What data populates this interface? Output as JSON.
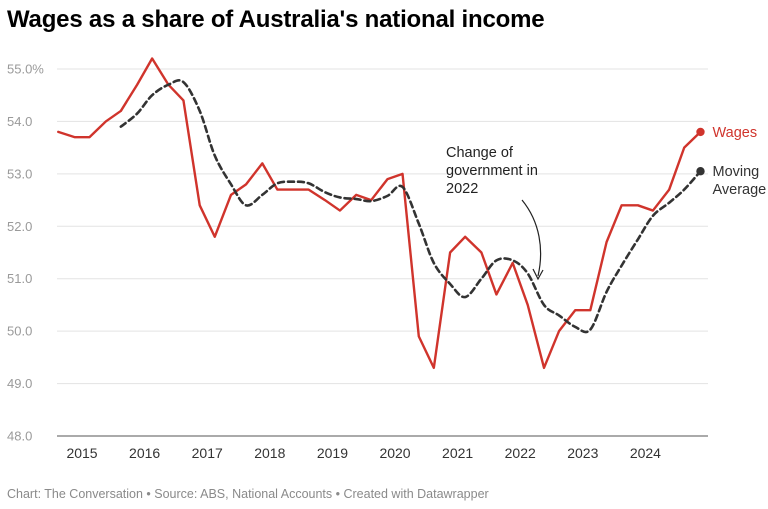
{
  "chart_data": {
    "type": "line",
    "title": "Wages as a share of Australia's national income",
    "footer": "Chart: The Conversation • Source: ABS, National Accounts • Created with Datawrapper",
    "ylim": [
      48.0,
      55.0
    ],
    "xlim": [
      2014.6,
      2025.0
    ],
    "y_ticks": [
      48.0,
      49.0,
      50.0,
      51.0,
      52.0,
      53.0,
      54.0,
      55.0
    ],
    "y_tick_labels": [
      "48.0",
      "49.0",
      "50.0",
      "51.0",
      "52.0",
      "53.0",
      "54.0",
      "55.0%"
    ],
    "x_ticks": [
      2015,
      2016,
      2017,
      2018,
      2019,
      2020,
      2021,
      2022,
      2023,
      2024
    ],
    "x_tick_labels": [
      "2015",
      "2016",
      "2017",
      "2018",
      "2019",
      "2020",
      "2021",
      "2022",
      "2023",
      "2024"
    ],
    "grid": true,
    "legend": "right",
    "annotation": {
      "lines": [
        "Change of",
        "government in",
        "2022"
      ]
    },
    "series": [
      {
        "name": "Wages",
        "color": "#d0342c",
        "style": "solid",
        "x": [
          2014.62,
          2014.88,
          2015.12,
          2015.38,
          2015.62,
          2015.88,
          2016.12,
          2016.38,
          2016.62,
          2016.88,
          2017.12,
          2017.38,
          2017.62,
          2017.88,
          2018.12,
          2018.38,
          2018.62,
          2018.88,
          2019.12,
          2019.38,
          2019.62,
          2019.88,
          2020.12,
          2020.38,
          2020.62,
          2020.88,
          2021.12,
          2021.38,
          2021.62,
          2021.88,
          2022.12,
          2022.38,
          2022.62,
          2022.88,
          2023.12,
          2023.38,
          2023.62,
          2023.88,
          2024.12,
          2024.38,
          2024.62,
          2024.88
        ],
        "values": [
          53.8,
          53.7,
          53.7,
          54.0,
          54.2,
          54.7,
          55.2,
          54.7,
          54.4,
          52.4,
          51.8,
          52.6,
          52.8,
          53.2,
          52.7,
          52.7,
          52.7,
          52.5,
          52.3,
          52.6,
          52.5,
          52.9,
          53.0,
          49.9,
          49.3,
          51.5,
          51.8,
          51.5,
          50.7,
          51.3,
          50.5,
          49.3,
          50.0,
          50.4,
          50.4,
          51.7,
          52.4,
          52.4,
          52.3,
          52.7,
          53.5,
          53.8
        ]
      },
      {
        "name": "Moving Average",
        "color": "#333333",
        "style": "dashed",
        "x": [
          2015.62,
          2015.88,
          2016.12,
          2016.38,
          2016.62,
          2016.88,
          2017.12,
          2017.38,
          2017.62,
          2017.88,
          2018.12,
          2018.38,
          2018.62,
          2018.88,
          2019.12,
          2019.38,
          2019.62,
          2019.88,
          2020.12,
          2020.38,
          2020.62,
          2020.88,
          2021.12,
          2021.38,
          2021.62,
          2021.88,
          2022.12,
          2022.38,
          2022.62,
          2022.88,
          2023.12,
          2023.38,
          2023.62,
          2023.88,
          2024.12,
          2024.38,
          2024.62,
          2024.88
        ],
        "values": [
          53.9,
          54.15,
          54.5,
          54.7,
          54.75,
          54.2,
          53.35,
          52.8,
          52.4,
          52.6,
          52.82,
          52.85,
          52.82,
          52.65,
          52.55,
          52.52,
          52.48,
          52.58,
          52.75,
          52.05,
          51.3,
          50.9,
          50.65,
          51.0,
          51.35,
          51.35,
          51.1,
          50.5,
          50.3,
          50.08,
          50.03,
          50.75,
          51.25,
          51.75,
          52.2,
          52.45,
          52.7,
          53.05
        ]
      }
    ]
  }
}
